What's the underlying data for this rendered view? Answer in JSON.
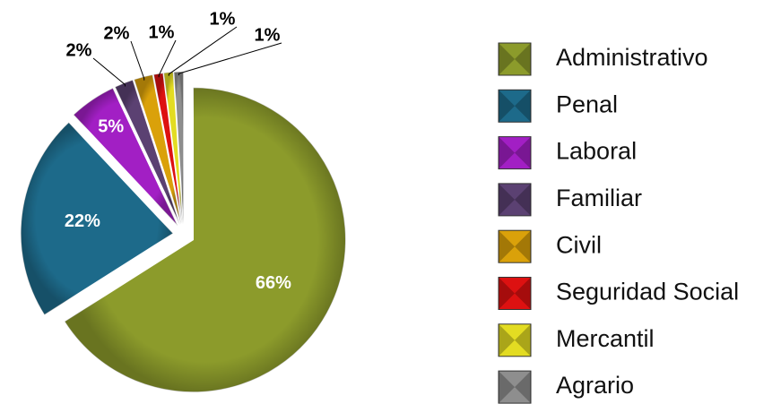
{
  "chart_data": {
    "type": "pie",
    "categories": [
      "Administrativo",
      "Penal",
      "Laboral",
      "Familiar",
      "Civil",
      "Seguridad Social",
      "Mercantil",
      "Agrario"
    ],
    "values": [
      66,
      22,
      5,
      2,
      2,
      1,
      1,
      1
    ],
    "value_labels": [
      "66%",
      "22%",
      "5%",
      "2%",
      "2%",
      "1%",
      "1%",
      "1%"
    ],
    "colors": [
      "#8c9b2b",
      "#1d6a8a",
      "#a21fc4",
      "#5b4172",
      "#daa10a",
      "#dd1111",
      "#e3dc22",
      "#8e8e8e"
    ],
    "legend": "right"
  }
}
